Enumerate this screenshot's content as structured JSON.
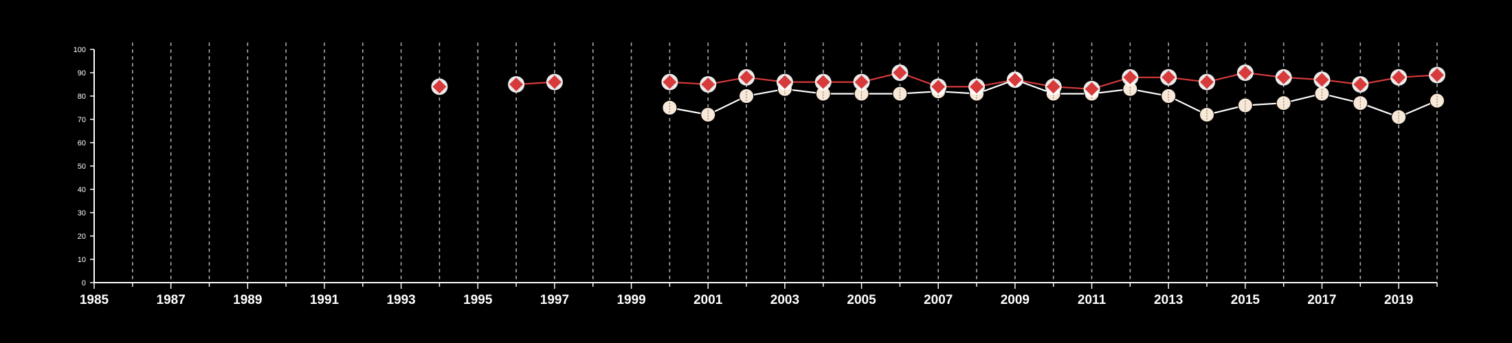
{
  "chart_data": {
    "type": "line",
    "title": "",
    "xlabel": "",
    "ylabel": "",
    "xlim": [
      1985,
      2020
    ],
    "ylim": [
      0,
      100
    ],
    "grid": true,
    "legend": "none",
    "background_color": "#000000",
    "x_tick_labels": [
      "1985",
      "1987",
      "1989",
      "1991",
      "1993",
      "1995",
      "1997",
      "1999",
      "2001",
      "2003",
      "2005",
      "2007",
      "2009",
      "2011",
      "2013",
      "2015",
      "2017",
      "2019"
    ],
    "y_tick_labels": [
      "0",
      "10",
      "20",
      "30",
      "40",
      "50",
      "60",
      "70",
      "80",
      "90",
      "100"
    ],
    "series": [
      {
        "marker": "circle",
        "color": "#f8e8d8",
        "line_color": "#ffffff",
        "points": [
          {
            "x": 2000,
            "y": 75
          },
          {
            "x": 2001,
            "y": 72
          },
          {
            "x": 2002,
            "y": 80
          },
          {
            "x": 2003,
            "y": 83
          },
          {
            "x": 2004,
            "y": 81
          },
          {
            "x": 2005,
            "y": 81
          },
          {
            "x": 2006,
            "y": 81
          },
          {
            "x": 2007,
            "y": 82
          },
          {
            "x": 2008,
            "y": 81
          },
          {
            "x": 2009,
            "y": 87
          },
          {
            "x": 2010,
            "y": 81
          },
          {
            "x": 2011,
            "y": 81
          },
          {
            "x": 2012,
            "y": 83
          },
          {
            "x": 2013,
            "y": 80
          },
          {
            "x": 2014,
            "y": 72
          },
          {
            "x": 2015,
            "y": 76
          },
          {
            "x": 2016,
            "y": 77
          },
          {
            "x": 2017,
            "y": 81
          },
          {
            "x": 2018,
            "y": 77
          },
          {
            "x": 2019,
            "y": 71
          },
          {
            "x": 2020,
            "y": 78
          }
        ]
      },
      {
        "marker": "diamond",
        "color": "#d63a3a",
        "line_color": "#d63a3a",
        "halo": true,
        "points": [
          {
            "x": 1994,
            "y": 84
          },
          {
            "x": 1996,
            "y": 85
          },
          {
            "x": 1997,
            "y": 86
          },
          {
            "x": 2000,
            "y": 86
          },
          {
            "x": 2001,
            "y": 85
          },
          {
            "x": 2002,
            "y": 88
          },
          {
            "x": 2003,
            "y": 86
          },
          {
            "x": 2004,
            "y": 86
          },
          {
            "x": 2005,
            "y": 86
          },
          {
            "x": 2006,
            "y": 90
          },
          {
            "x": 2007,
            "y": 84
          },
          {
            "x": 2008,
            "y": 84
          },
          {
            "x": 2009,
            "y": 87
          },
          {
            "x": 2010,
            "y": 84
          },
          {
            "x": 2011,
            "y": 83
          },
          {
            "x": 2012,
            "y": 88
          },
          {
            "x": 2013,
            "y": 88
          },
          {
            "x": 2014,
            "y": 86
          },
          {
            "x": 2015,
            "y": 90
          },
          {
            "x": 2016,
            "y": 88
          },
          {
            "x": 2017,
            "y": 87
          },
          {
            "x": 2018,
            "y": 85
          },
          {
            "x": 2019,
            "y": 88
          },
          {
            "x": 2020,
            "y": 89
          }
        ]
      }
    ]
  }
}
